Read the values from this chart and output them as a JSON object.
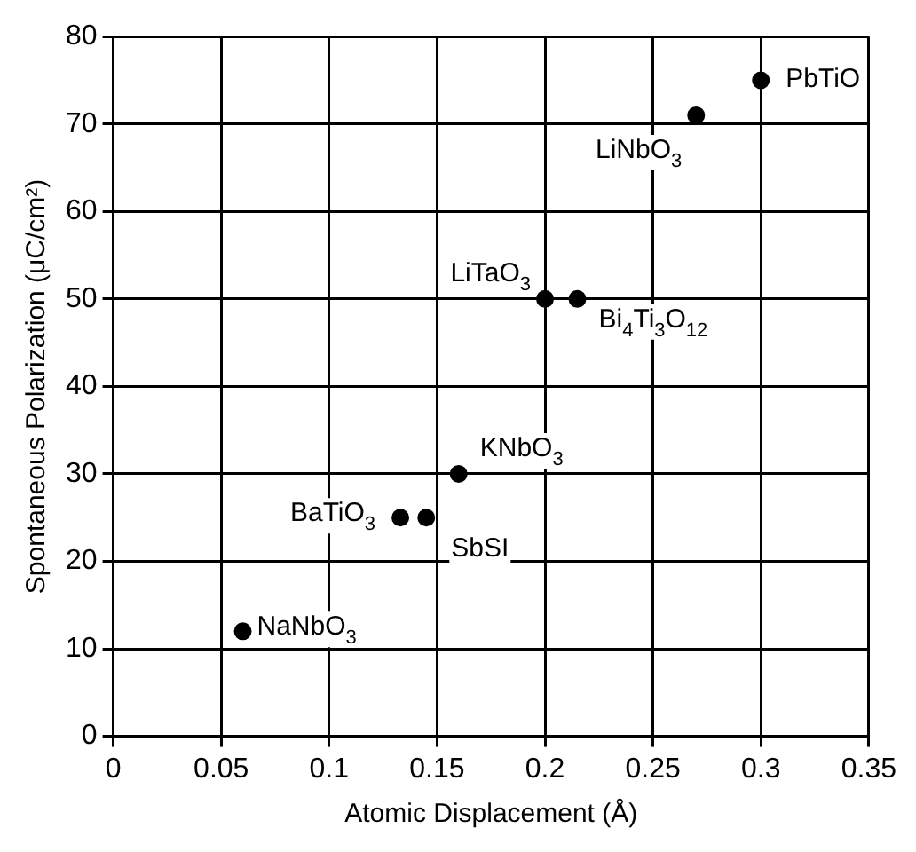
{
  "chart_data": {
    "type": "scatter",
    "xlabel": "Atomic Displacement (Å)",
    "ylabel": "Spontaneous Polarization (μC/cm²)",
    "x": [
      0.3,
      0.27,
      0.2,
      0.215,
      0.16,
      0.133,
      0.145,
      0.06
    ],
    "series": [
      {
        "color": "#000000",
        "values": [
          75,
          71,
          50,
          50,
          30,
          25,
          25,
          12
        ]
      }
    ],
    "xlim": [
      0,
      0.35
    ],
    "xticks": [
      0,
      0.05,
      0.1,
      0.15,
      0.2,
      0.25,
      0.3,
      0.35
    ],
    "ylim": [
      0,
      80
    ],
    "yticks": [
      0,
      10,
      20,
      30,
      40,
      50,
      60,
      70,
      80
    ],
    "grid": true,
    "legend": false,
    "marker": "circle",
    "annotations": [
      {
        "text": "PbTiO",
        "x": 0.3,
        "y": 75
      },
      {
        "text": "LiNbO$_{3}$",
        "x": 0.27,
        "y": 71
      },
      {
        "text": "LiTaO$_{3}$",
        "x": 0.2,
        "y": 50
      },
      {
        "text": "Bi$_{4}$Ti$_{3}$O$_{12}$",
        "x": 0.215,
        "y": 50
      },
      {
        "text": "KNbO$_{3}$",
        "x": 0.16,
        "y": 30
      },
      {
        "text": "BaTiO$_{3}$",
        "x": 0.133,
        "y": 25
      },
      {
        "text": "SbSI",
        "x": 0.145,
        "y": 25
      },
      {
        "text": "NaNbO$_{3}$",
        "x": 0.06,
        "y": 12
      }
    ]
  }
}
